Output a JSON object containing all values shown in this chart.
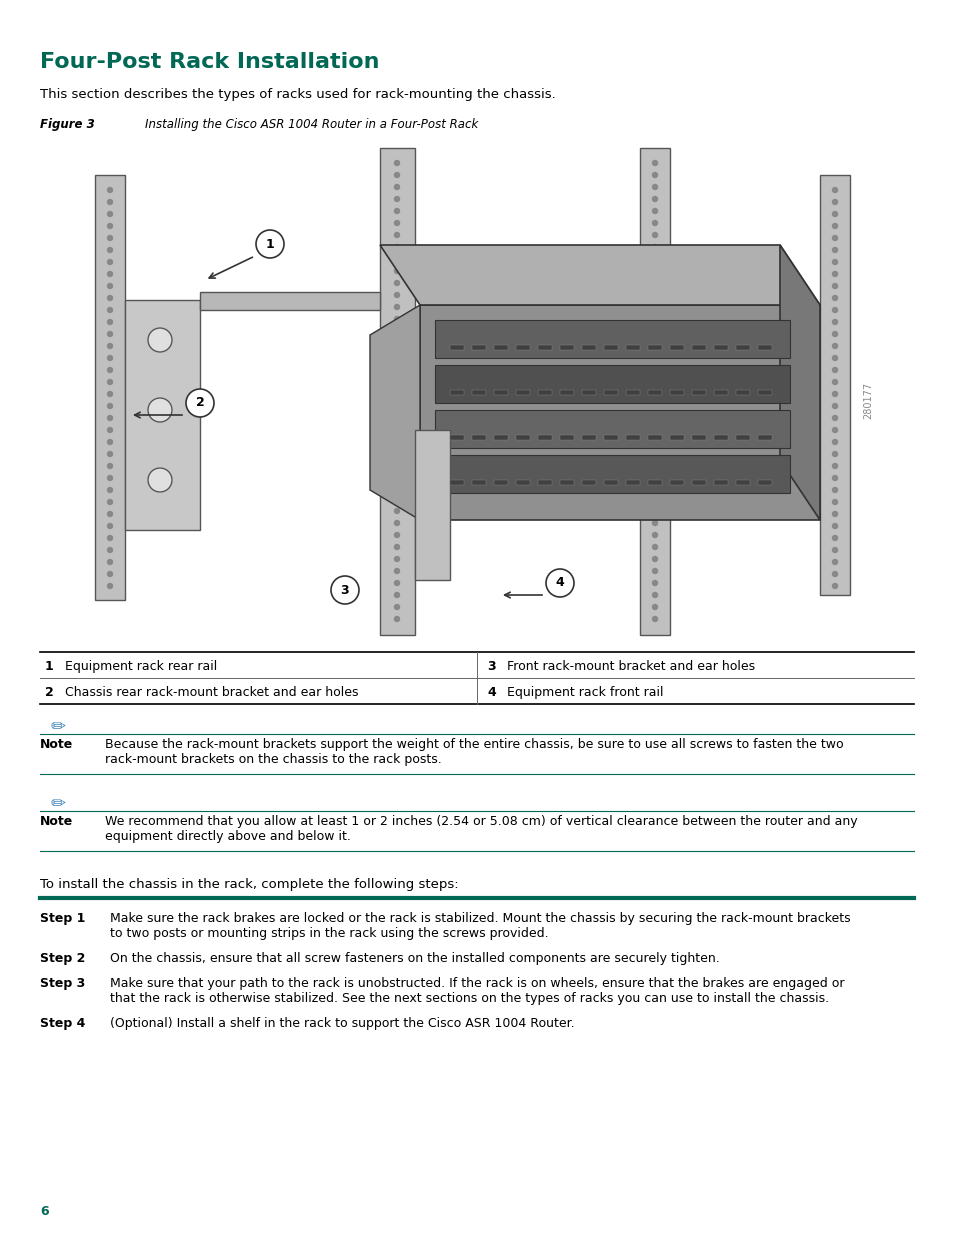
{
  "title": "Four-Post Rack Installation",
  "title_color": "#006854",
  "title_fontsize": 16,
  "body_fontsize": 9.5,
  "small_fontsize": 8.5,
  "bg_color": "#ffffff",
  "text_color": "#000000",
  "green_color": "#006854",
  "intro_text": "This section describes the types of racks used for rack-mounting the chassis.",
  "figure_label": "Figure 3",
  "figure_title": "Installing the Cisco ASR 1004 Router in a Four-Post Rack",
  "table_rows": [
    [
      "1",
      "Equipment rack rear rail",
      "3",
      "Front rack-mount bracket and ear holes"
    ],
    [
      "2",
      "Chassis rear rack-mount bracket and ear holes",
      "4",
      "Equipment rack front rail"
    ]
  ],
  "note1_text": "Because the rack-mount brackets support the weight of the entire chassis, be sure to use all screws to fasten the two\nrack-mount brackets on the chassis to the rack posts.",
  "note2_text": "We recommend that you allow at least 1 or 2 inches (2.54 or 5.08 cm) of vertical clearance between the router and any\nequipment directly above and below it.",
  "steps_intro": "To install the chassis in the rack, complete the following steps:",
  "steps": [
    [
      "Step 1",
      "Make sure the rack brakes are locked or the rack is stabilized. Mount the chassis by securing the rack-mount brackets\nto two posts or mounting strips in the rack using the screws provided."
    ],
    [
      "Step 2",
      "On the chassis, ensure that all screw fasteners on the installed components are securely tighten."
    ],
    [
      "Step 3",
      "Make sure that your path to the rack is unobstructed. If the rack is on wheels, ensure that the brakes are engaged or\nthat the rack is otherwise stabilized. See the next sections on the types of racks you can use to install the chassis."
    ],
    [
      "Step 4",
      "(Optional) Install a shelf in the rack to support the Cisco ASR 1004 Router."
    ]
  ],
  "page_number": "6"
}
